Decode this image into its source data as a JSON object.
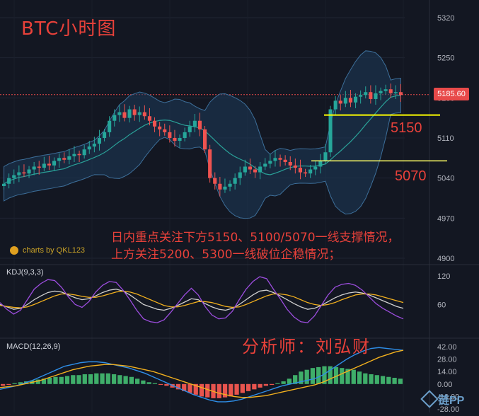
{
  "header": {
    "title": "BTC小时图",
    "brand": "charts by QKL123",
    "kdj_label": "KDJ(9,3,3)",
    "macd_label": "MACD(12,26,9)",
    "last_price_tag": "5185.60",
    "watermark": "链PP"
  },
  "annotations": {
    "note_line1": "日内重点关注下方5150、5100/5070一线支撑情况，",
    "note_line2": "上方关注5200、5300一线破位企稳情况；",
    "analyst": "分析师：刘弘财",
    "level_5150": "5150",
    "level_5070": "5070"
  },
  "colors": {
    "background": "#131722",
    "up": "#26a69a",
    "down": "#ef5350",
    "band_fill": "#1e3a5a",
    "support_main": "#ffff00",
    "support_alt": "#ffff66",
    "kdj_k": "#cfcfcf",
    "kdj_d": "#f2b01e",
    "kdj_j": "#9c4dde",
    "macd_dif": "#2e8ee8",
    "macd_dea": "#f2b01e",
    "text_red": "#e8413a"
  },
  "chart_data": [
    {
      "type": "candlestick",
      "title": "BTC小时图",
      "y_ticks": [
        5320,
        5250,
        5180,
        5110,
        5040,
        4970,
        4900
      ],
      "ylim": [
        4900,
        5320
      ],
      "current_price": 5185.6,
      "support_lines": [
        5150,
        5070
      ],
      "closes": [
        5030,
        5040,
        5045,
        5050,
        5048,
        5055,
        5060,
        5058,
        5065,
        5062,
        5070,
        5075,
        5072,
        5078,
        5082,
        5080,
        5090,
        5095,
        5100,
        5110,
        5120,
        5140,
        5150,
        5155,
        5145,
        5160,
        5150,
        5155,
        5148,
        5140,
        5130,
        5125,
        5120,
        5110,
        5105,
        5110,
        5120,
        5130,
        5140,
        5125,
        5090,
        5040,
        5030,
        5020,
        5025,
        5030,
        5040,
        5050,
        5060,
        5055,
        5050,
        5060,
        5065,
        5070,
        5075,
        5072,
        5068,
        5062,
        5058,
        5050,
        5048,
        5055,
        5060,
        5070,
        5085,
        5160,
        5175,
        5170,
        5180,
        5172,
        5182,
        5185,
        5190,
        5178,
        5188,
        5192,
        5195,
        5188,
        5190,
        5185
      ]
    },
    {
      "type": "line",
      "title": "KDJ(9,3,3)",
      "y_ticks": [
        120,
        60
      ],
      "ylim": [
        0,
        130
      ],
      "series": [
        {
          "name": "K",
          "values": [
            60,
            55,
            50,
            52,
            60,
            70,
            78,
            85,
            88,
            86,
            80,
            74,
            70,
            72,
            78,
            85,
            90,
            92,
            88,
            80,
            70,
            60,
            55,
            50,
            48,
            52,
            58,
            65,
            72,
            70,
            62,
            55,
            50,
            48,
            52,
            60,
            70,
            80,
            88,
            90,
            85,
            78,
            70,
            62,
            55,
            50,
            52,
            58,
            66,
            74,
            80,
            84,
            86,
            84,
            80,
            74,
            68,
            62,
            56,
            52
          ]
        },
        {
          "name": "D",
          "values": [
            58,
            56,
            54,
            53,
            55,
            60,
            66,
            72,
            78,
            82,
            82,
            80,
            77,
            75,
            75,
            78,
            82,
            86,
            88,
            86,
            82,
            76,
            70,
            64,
            58,
            55,
            55,
            58,
            62,
            66,
            66,
            64,
            60,
            56,
            54,
            55,
            60,
            66,
            72,
            78,
            82,
            82,
            80,
            76,
            70,
            64,
            60,
            58,
            60,
            64,
            70,
            75,
            80,
            82,
            82,
            80,
            76,
            72,
            68,
            64
          ]
        },
        {
          "name": "J",
          "values": [
            64,
            50,
            40,
            48,
            70,
            92,
            104,
            112,
            110,
            96,
            76,
            60,
            54,
            66,
            86,
            100,
            108,
            106,
            90,
            70,
            48,
            30,
            24,
            22,
            28,
            44,
            62,
            80,
            94,
            80,
            56,
            38,
            30,
            32,
            46,
            70,
            92,
            108,
            118,
            114,
            92,
            72,
            50,
            34,
            24,
            22,
            36,
            58,
            80,
            96,
            102,
            104,
            100,
            90,
            76,
            62,
            52,
            44,
            36,
            30
          ]
        }
      ]
    },
    {
      "type": "bar",
      "title": "MACD(12,26,9)",
      "y_ticks": [
        42.0,
        28.0,
        14.0,
        0.0,
        -14.0,
        -28.0
      ],
      "ylim": [
        -28,
        42
      ],
      "series": [
        {
          "name": "histogram",
          "values": [
            -2,
            -1,
            1,
            2,
            3,
            4,
            5,
            6,
            7,
            8,
            8,
            9,
            10,
            10,
            11,
            11,
            12,
            12,
            12,
            11,
            10,
            9,
            8,
            6,
            4,
            2,
            1,
            -1,
            -2,
            -4,
            -6,
            -8,
            -10,
            -12,
            -14,
            -15,
            -16,
            -16,
            -15,
            -14,
            -12,
            -10,
            -8,
            -6,
            -4,
            -2,
            -1,
            1,
            3,
            6,
            10,
            14,
            16,
            18,
            19,
            20,
            20,
            19,
            18,
            17,
            16,
            14,
            12,
            11,
            10,
            9,
            8,
            7,
            6
          ]
        },
        {
          "name": "DIF",
          "values": [
            -6,
            -4,
            -2,
            1,
            4,
            8,
            12,
            16,
            20,
            22,
            24,
            25,
            25,
            24,
            22,
            20,
            18,
            15,
            12,
            8,
            4,
            0,
            -4,
            -8,
            -12,
            -15,
            -18,
            -20,
            -20,
            -19,
            -17,
            -14,
            -11,
            -8,
            -5,
            -2,
            0,
            2,
            4,
            6,
            10,
            16,
            22,
            28,
            33,
            37,
            40,
            41,
            40,
            39,
            38
          ]
        },
        {
          "name": "DEA",
          "values": [
            -4,
            -3,
            -2,
            0,
            2,
            4,
            7,
            10,
            13,
            16,
            18,
            20,
            21,
            22,
            22,
            21,
            20,
            18,
            16,
            14,
            11,
            8,
            5,
            2,
            -1,
            -4,
            -7,
            -10,
            -12,
            -14,
            -15,
            -15,
            -14,
            -13,
            -11,
            -9,
            -7,
            -5,
            -3,
            -1,
            2,
            6,
            10,
            14,
            18,
            22,
            26,
            30,
            33,
            36,
            38
          ]
        }
      ]
    }
  ]
}
